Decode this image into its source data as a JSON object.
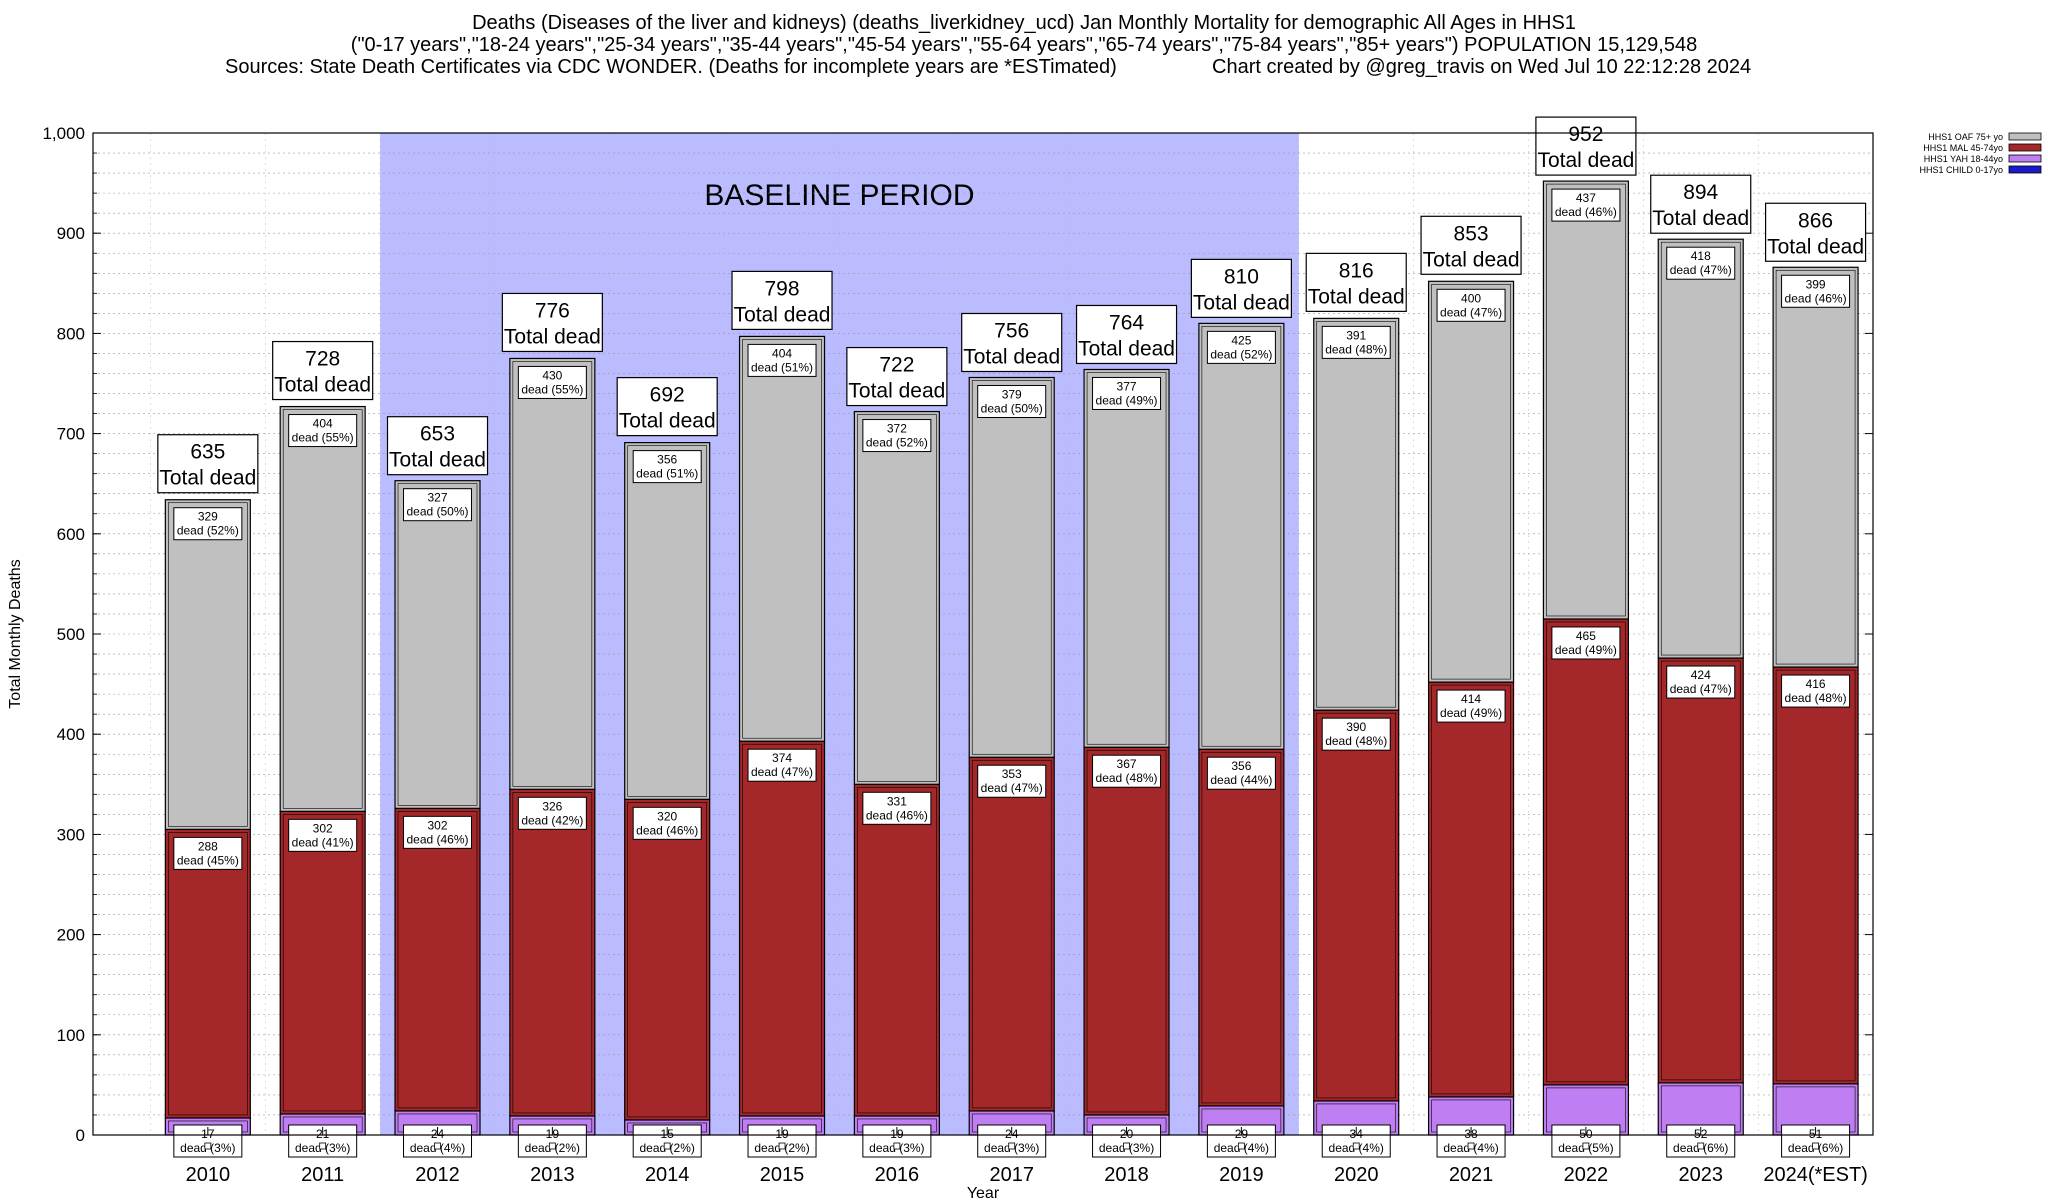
{
  "header": {
    "title_line1": "Deaths (Diseases of the liver and kidneys) (deaths_liverkidney_ucd) Jan Monthly Mortality for demographic All Ages in HHS1",
    "title_line2": "(\"0-17 years\",\"18-24 years\",\"25-34 years\",\"35-44 years\",\"45-54 years\",\"55-64 years\",\"65-74 years\",\"75-84 years\",\"85+ years\") POPULATION 15,129,548",
    "title_line3a": "Sources: State Death Certificates via CDC WONDER. (Deaths for incomplete years are *ESTimated)",
    "title_line3b": "Chart created by @greg_travis on Wed Jul 10 22:12:28 2024"
  },
  "chart_data": {
    "type": "bar",
    "stacked": true,
    "xlabel": "Year",
    "ylabel": "Total Monthly Deaths",
    "ylim": [
      0,
      1000
    ],
    "yticks": [
      0,
      100,
      200,
      300,
      400,
      500,
      600,
      700,
      800,
      900,
      1000
    ],
    "ytick_labels": [
      "0",
      "100",
      "200",
      "300",
      "400",
      "500",
      "600",
      "700",
      "800",
      "900",
      "1,000"
    ],
    "grid": true,
    "legend_position": "top-right",
    "categories": [
      "2010",
      "2011",
      "2012",
      "2013",
      "2014",
      "2015",
      "2016",
      "2017",
      "2018",
      "2019",
      "2020",
      "2021",
      "2022",
      "2023",
      "2024(*EST)"
    ],
    "baseline_period": {
      "label": "BASELINE PERIOD",
      "start": "2012",
      "end": "2019",
      "color": "#bbbbff"
    },
    "series": [
      {
        "name": "HHS1 CHILD 0-17yo",
        "color": "#1a1ac8",
        "values": [
          0,
          0,
          0,
          0,
          0,
          0,
          0,
          0,
          0,
          0,
          0,
          0,
          0,
          0,
          0
        ],
        "labels": [
          "",
          "",
          "",
          "",
          "",
          "",
          "",
          "",
          "",
          "",
          "",
          "",
          "",
          "",
          ""
        ]
      },
      {
        "name": "HHS1 YAH 18-44yo",
        "color": "#bf7ff2",
        "values": [
          17,
          21,
          24,
          19,
          15,
          19,
          19,
          24,
          20,
          29,
          34,
          38,
          50,
          52,
          51
        ],
        "labels": [
          "17\ndead (3%)",
          "21\ndead (3%)",
          "24\ndead (4%)",
          "19\ndead (2%)",
          "15\ndead (2%)",
          "19\ndead (2%)",
          "19\ndead (3%)",
          "24\ndead (3%)",
          "20\ndead (3%)",
          "29\ndead (4%)",
          "34\ndead (4%)",
          "38\ndead (4%)",
          "50\ndead (5%)",
          "52\ndead (6%)",
          "51\ndead (6%)"
        ]
      },
      {
        "name": "HHS1 MAL 45-74yo",
        "color": "#a4282a",
        "values": [
          288,
          302,
          302,
          326,
          320,
          374,
          331,
          353,
          367,
          356,
          390,
          414,
          465,
          424,
          416
        ],
        "labels": [
          "288\ndead (45%)",
          "302\ndead (41%)",
          "302\ndead (46%)",
          "326\ndead (42%)",
          "320\ndead (46%)",
          "374\ndead (47%)",
          "331\ndead (46%)",
          "353\ndead (47%)",
          "367\ndead (48%)",
          "356\ndead (44%)",
          "390\ndead (48%)",
          "414\ndead (49%)",
          "465\ndead (49%)",
          "424\ndead (47%)",
          "416\ndead (48%)"
        ]
      },
      {
        "name": "HHS1 OAF 75+ yo",
        "color": "#c0c0c0",
        "values": [
          329,
          404,
          327,
          430,
          356,
          404,
          372,
          379,
          377,
          425,
          391,
          400,
          437,
          418,
          399
        ],
        "labels": [
          "329\ndead (52%)",
          "404\ndead (55%)",
          "327\ndead (50%)",
          "430\ndead (55%)",
          "356\ndead (51%)",
          "404\ndead (51%)",
          "372\ndead (52%)",
          "379\ndead (50%)",
          "377\ndead (49%)",
          "425\ndead (52%)",
          "391\ndead (48%)",
          "400\ndead (47%)",
          "437\ndead (46%)",
          "418\ndead (47%)",
          "399\ndead (46%)"
        ]
      }
    ],
    "totals": [
      635,
      728,
      653,
      776,
      692,
      798,
      722,
      756,
      764,
      810,
      816,
      853,
      952,
      894,
      866
    ],
    "total_label": "Total dead"
  }
}
